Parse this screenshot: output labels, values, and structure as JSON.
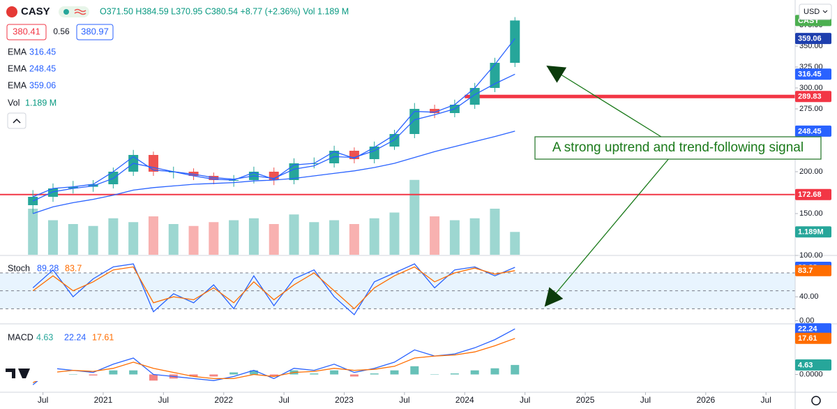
{
  "header": {
    "symbol": "CASY",
    "ohlc": "O371.50 H384.59 L370.95 C380.54 +8.77 (+2.36%) Vol 1.189 M",
    "bid": "380.41",
    "spread": "0.56",
    "ask": "380.97",
    "currency": "USD",
    "vol_name": "Vol",
    "vol_value": "1.189 M"
  },
  "annotation": "A strong uptrend and trend-following signal",
  "chart_data": [
    {
      "type": "candlestick",
      "x": [
        "2020-06",
        "2020-08",
        "2020-10",
        "2020-12",
        "2021-02",
        "2021-04",
        "2021-06",
        "2021-08",
        "2021-10",
        "2021-12",
        "2022-02",
        "2022-04",
        "2022-06",
        "2022-08",
        "2022-10",
        "2022-12",
        "2023-02",
        "2023-04",
        "2023-06",
        "2023-08",
        "2023-10",
        "2023-12",
        "2024-02",
        "2024-04",
        "2024-06"
      ],
      "open": [
        160,
        170,
        180,
        182,
        185,
        200,
        220,
        200,
        200,
        195,
        190,
        190,
        200,
        190,
        210,
        210,
        225,
        215,
        230,
        245,
        275,
        270,
        280,
        300,
        330
      ],
      "high": [
        178,
        186,
        189,
        190,
        205,
        226,
        224,
        206,
        204,
        199,
        196,
        206,
        205,
        216,
        217,
        231,
        229,
        236,
        250,
        282,
        280,
        286,
        306,
        336,
        384.59
      ],
      "low": [
        150,
        164,
        174,
        176,
        180,
        195,
        195,
        192,
        190,
        185,
        182,
        186,
        184,
        185,
        204,
        205,
        210,
        210,
        226,
        240,
        264,
        265,
        275,
        295,
        325
      ],
      "close": [
        170,
        180,
        182,
        185,
        200,
        220,
        200,
        200,
        195,
        190,
        190,
        200,
        190,
        210,
        210,
        225,
        215,
        230,
        245,
        275,
        270,
        280,
        300,
        330,
        380.54
      ],
      "up_color": "#26a69a",
      "down_color": "#ef5350",
      "volume": [
        2.4,
        1.8,
        1.6,
        1.5,
        1.9,
        1.7,
        2.0,
        1.6,
        1.5,
        1.7,
        1.8,
        1.9,
        1.6,
        2.1,
        1.7,
        1.8,
        1.6,
        1.9,
        2.2,
        3.9,
        2.0,
        1.8,
        1.9,
        2.4,
        1.189
      ],
      "volume_ylim": [
        0,
        4
      ],
      "series": [
        {
          "name": "EMA",
          "color": "#2962ff",
          "width": 1.3,
          "values": [
            165,
            176,
            180,
            183,
            192,
            210,
            205,
            200,
            197,
            193,
            191,
            195,
            192,
            203,
            207,
            218,
            217,
            225,
            238,
            262,
            268,
            275,
            292,
            305,
            316.45
          ]
        },
        {
          "name": "EMA",
          "color": "#2962ff",
          "width": 1.3,
          "values": [
            150,
            158,
            163,
            167,
            172,
            178,
            181,
            183,
            185,
            186,
            187,
            189,
            190,
            192,
            195,
            198,
            201,
            205,
            210,
            217,
            224,
            230,
            236,
            242,
            248.45
          ]
        },
        {
          "name": "EMA",
          "color": "#2962ff",
          "width": 1.3,
          "values": [
            170,
            180,
            182,
            185,
            200,
            218,
            202,
            200,
            195,
            191,
            190,
            199,
            191,
            208,
            210,
            224,
            216,
            229,
            244,
            272,
            271,
            280,
            300,
            328,
            359.06
          ]
        }
      ],
      "hlines": [
        {
          "value": 289.83,
          "color": "#f23645",
          "width": 5,
          "start": "2024-01"
        },
        {
          "value": 172.68,
          "color": "#f23645",
          "width": 2
        }
      ],
      "xlim": [
        "2020-03",
        "2026-09"
      ],
      "xticks": [
        {
          "value": "2020-07",
          "label": "Jul"
        },
        {
          "value": "2021-01",
          "label": "2021"
        },
        {
          "value": "2021-07",
          "label": "Jul"
        },
        {
          "value": "2022-01",
          "label": "2022"
        },
        {
          "value": "2022-07",
          "label": "Jul"
        },
        {
          "value": "2023-01",
          "label": "2023"
        },
        {
          "value": "2023-07",
          "label": "Jul"
        },
        {
          "value": "2024-01",
          "label": "2024"
        },
        {
          "value": "2024-07",
          "label": "Jul"
        },
        {
          "value": "2025-01",
          "label": "2025"
        },
        {
          "value": "2025-07",
          "label": "Jul"
        },
        {
          "value": "2026-01",
          "label": "2026"
        },
        {
          "value": "2026-07",
          "label": "Jul"
        }
      ],
      "ylim": [
        95,
        390
      ],
      "yticks": [
        {
          "value": 100,
          "label": "100.00"
        },
        {
          "value": 150,
          "label": "150.00"
        },
        {
          "value": 200,
          "label": "200.00"
        },
        {
          "value": 275,
          "label": "275.00"
        },
        {
          "value": 300,
          "label": "300.00"
        },
        {
          "value": 325,
          "label": "325.00"
        },
        {
          "value": 350,
          "label": "350.00"
        },
        {
          "value": 375,
          "label": "375.00"
        }
      ],
      "badges": [
        {
          "value": 380.54,
          "label": "CASY",
          "color": "#4caf50"
        },
        {
          "value": 359.06,
          "color": "#1e3fae"
        },
        {
          "value": 316.45,
          "color": "#2962ff"
        },
        {
          "value": 289.83,
          "color": "#f23645"
        },
        {
          "value": 248.45,
          "color": "#2962ff"
        },
        {
          "value": 172.68,
          "color": "#f23645"
        },
        {
          "value": 1.189,
          "label": "1.189M",
          "color": "#26a69a",
          "axis": "volume"
        }
      ]
    },
    {
      "type": "line",
      "name": "Stoch",
      "series": [
        {
          "name": "%K",
          "color": "#2962ff",
          "values": [
            55,
            85,
            40,
            70,
            90,
            95,
            15,
            45,
            30,
            60,
            20,
            75,
            25,
            70,
            85,
            40,
            10,
            65,
            80,
            95,
            55,
            85,
            90,
            75,
            89.28
          ]
        },
        {
          "name": "%D",
          "color": "#ff6d00",
          "values": [
            50,
            75,
            50,
            65,
            85,
            90,
            30,
            40,
            35,
            55,
            30,
            65,
            35,
            60,
            80,
            50,
            20,
            55,
            75,
            90,
            65,
            80,
            88,
            78,
            83.7
          ]
        }
      ],
      "levels": [
        20,
        50,
        80
      ],
      "ylim": [
        -3,
        108
      ],
      "yticks": [
        {
          "value": 0,
          "label": "0.00"
        },
        {
          "value": 40,
          "label": "40.00"
        }
      ],
      "badges": [
        {
          "value": 89.28,
          "color": "#2962ff"
        },
        {
          "value": 83.7,
          "color": "#ff6d00"
        }
      ]
    },
    {
      "type": "macd",
      "name": "MACD",
      "series": [
        {
          "name": "Histogram",
          "kind": "histogram",
          "color": "#26a69a",
          "down_color": "#ef5350",
          "values": [
            -1,
            2,
            0,
            -0.5,
            2,
            2,
            -3,
            -2,
            -1,
            -1,
            1,
            2,
            -1,
            2,
            0.5,
            2,
            -1,
            0.5,
            2,
            4,
            0,
            0.5,
            2,
            3,
            4.63
          ]
        },
        {
          "name": "MACD",
          "color": "#2962ff",
          "values": [
            -5,
            3,
            2,
            1,
            5,
            8,
            0,
            -1,
            -2,
            -3,
            -1,
            2,
            -2,
            3,
            2,
            5,
            1,
            3,
            6,
            12,
            9,
            10,
            13,
            17,
            22.24
          ]
        },
        {
          "name": "Signal",
          "color": "#ff6d00",
          "values": [
            -4,
            1,
            2,
            1.5,
            3,
            6,
            3,
            1,
            -1,
            -2,
            -2,
            0,
            -1,
            1,
            1.5,
            3,
            2,
            2.5,
            4,
            8,
            9,
            9.5,
            11,
            14,
            17.61
          ]
        }
      ],
      "ylim": [
        -8,
        24
      ],
      "yticks": [
        {
          "value": 0,
          "label": "0.0000"
        }
      ],
      "badges": [
        {
          "value": 22.24,
          "color": "#2962ff"
        },
        {
          "value": 17.61,
          "color": "#ff6d00"
        },
        {
          "value": 4.63,
          "color": "#26a69a"
        }
      ]
    }
  ]
}
